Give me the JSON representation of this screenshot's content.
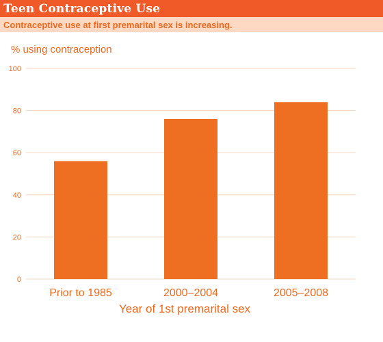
{
  "header": {
    "title": "Teen Contraceptive Use",
    "subtitle": "Contraceptive use at first premarital sex is increasing."
  },
  "colors": {
    "title_bar": "#f05a28",
    "subtitle_bar": "#fdd9c4",
    "bar": "#ee6e22",
    "text": "#e86a20",
    "tick_text": "#e86a20",
    "grid": "#f8d5bf"
  },
  "chart_data": {
    "type": "bar",
    "categories": [
      "Prior to 1985",
      "2000–2004",
      "2005–2008"
    ],
    "values": [
      56,
      76,
      84
    ],
    "ylabel": "% using contraception",
    "xlabel": "Year of 1st premarital sex",
    "ylim": [
      0,
      100
    ],
    "yticks": [
      "0",
      "20",
      "40",
      "60",
      "80",
      "100"
    ],
    "grid": true,
    "legend": "none"
  }
}
